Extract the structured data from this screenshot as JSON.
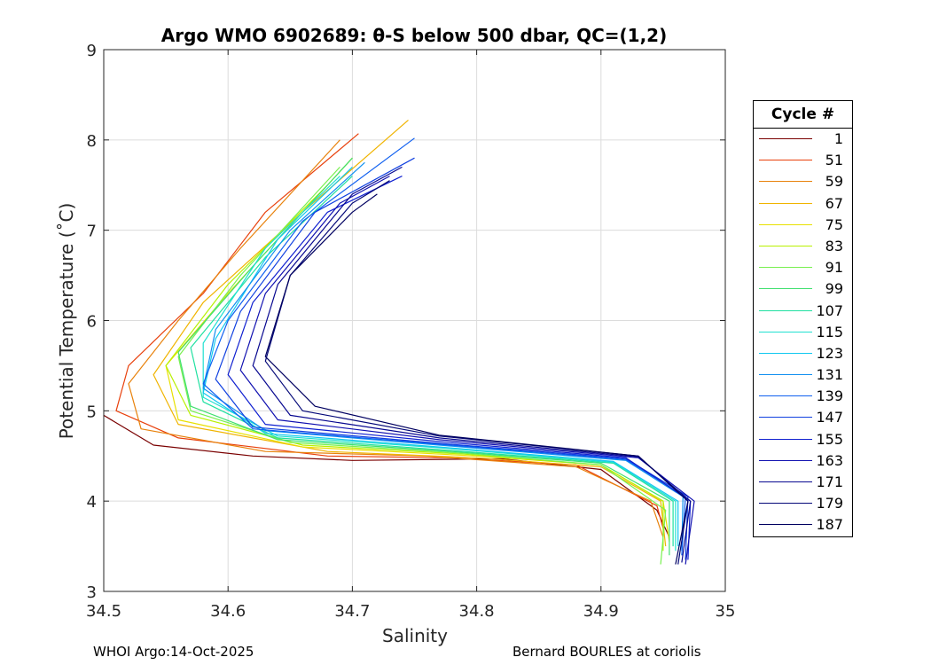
{
  "chart_data": {
    "type": "line",
    "title": "Argo WMO 6902689: θ-S below 500 dbar,  QC=(1,2)",
    "xlabel": "Salinity",
    "ylabel": "Potential Temperature (˚C)",
    "xlim": [
      34.5,
      35
    ],
    "ylim": [
      3,
      9
    ],
    "xticks": [
      "34.5",
      "34.6",
      "34.7",
      "34.8",
      "34.9",
      "35"
    ],
    "yticks": [
      "3",
      "4",
      "5",
      "6",
      "7",
      "8",
      "9"
    ],
    "grid": true,
    "legend": {
      "title": "Cycle #",
      "placement": "outside-right",
      "entries": [
        {
          "label": "1",
          "color": "#7a0000"
        },
        {
          "label": "51",
          "color": "#e8400c"
        },
        {
          "label": "59",
          "color": "#e8820c"
        },
        {
          "label": "67",
          "color": "#f0b400"
        },
        {
          "label": "75",
          "color": "#e8e000"
        },
        {
          "label": "83",
          "color": "#b8f000"
        },
        {
          "label": "91",
          "color": "#78f050"
        },
        {
          "label": "99",
          "color": "#40e070"
        },
        {
          "label": "107",
          "color": "#20e0a0"
        },
        {
          "label": "115",
          "color": "#20e0d0"
        },
        {
          "label": "123",
          "color": "#10c8f0"
        },
        {
          "label": "131",
          "color": "#1090f0"
        },
        {
          "label": "139",
          "color": "#1060f0"
        },
        {
          "label": "147",
          "color": "#1040e0"
        },
        {
          "label": "155",
          "color": "#1020d0"
        },
        {
          "label": "163",
          "color": "#1010b0"
        },
        {
          "label": "171",
          "color": "#080890"
        },
        {
          "label": "179",
          "color": "#040878"
        },
        {
          "label": "187",
          "color": "#000060"
        }
      ]
    },
    "series": [
      {
        "name": "1",
        "color": "#7a0000",
        "points": [
          [
            34.955,
            3.6
          ],
          [
            34.945,
            3.9
          ],
          [
            34.9,
            4.35
          ],
          [
            34.82,
            4.47
          ],
          [
            34.7,
            4.45
          ],
          [
            34.62,
            4.5
          ],
          [
            34.54,
            4.62
          ],
          [
            34.5,
            4.95
          ]
        ]
      },
      {
        "name": "51",
        "color": "#e8400c",
        "points": [
          [
            34.95,
            3.7
          ],
          [
            34.945,
            3.95
          ],
          [
            34.88,
            4.4
          ],
          [
            34.78,
            4.48
          ],
          [
            34.68,
            4.5
          ],
          [
            34.56,
            4.7
          ],
          [
            34.51,
            5.0
          ],
          [
            34.52,
            5.5
          ],
          [
            34.58,
            6.3
          ],
          [
            34.63,
            7.2
          ],
          [
            34.705,
            8.07
          ]
        ]
      },
      {
        "name": "59",
        "color": "#e8820c",
        "points": [
          [
            34.95,
            3.6
          ],
          [
            34.94,
            4.0
          ],
          [
            34.88,
            4.38
          ],
          [
            34.76,
            4.5
          ],
          [
            34.63,
            4.55
          ],
          [
            34.53,
            4.8
          ],
          [
            34.52,
            5.3
          ],
          [
            34.56,
            6.0
          ],
          [
            34.61,
            6.8
          ],
          [
            34.69,
            8.0
          ]
        ]
      },
      {
        "name": "67",
        "color": "#f0b400",
        "points": [
          [
            34.952,
            3.5
          ],
          [
            34.948,
            4.0
          ],
          [
            34.9,
            4.38
          ],
          [
            34.8,
            4.48
          ],
          [
            34.68,
            4.55
          ],
          [
            34.56,
            4.85
          ],
          [
            34.54,
            5.4
          ],
          [
            34.58,
            6.2
          ],
          [
            34.66,
            7.2
          ],
          [
            34.745,
            8.22
          ]
        ]
      },
      {
        "name": "75",
        "color": "#e8e000",
        "points": [
          [
            34.955,
            3.55
          ],
          [
            34.95,
            4.0
          ],
          [
            34.9,
            4.4
          ],
          [
            34.8,
            4.5
          ],
          [
            34.66,
            4.6
          ],
          [
            34.56,
            4.9
          ],
          [
            34.55,
            5.5
          ],
          [
            34.6,
            6.3
          ],
          [
            34.7,
            7.8
          ]
        ]
      },
      {
        "name": "83",
        "color": "#b8f000",
        "points": [
          [
            34.95,
            3.45
          ],
          [
            34.95,
            4.0
          ],
          [
            34.9,
            4.4
          ],
          [
            34.79,
            4.52
          ],
          [
            34.66,
            4.62
          ],
          [
            34.57,
            4.95
          ],
          [
            34.55,
            5.5
          ],
          [
            34.6,
            6.4
          ],
          [
            34.68,
            7.5
          ]
        ]
      },
      {
        "name": "91",
        "color": "#78f050",
        "points": [
          [
            34.948,
            3.3
          ],
          [
            34.952,
            3.9
          ],
          [
            34.9,
            4.4
          ],
          [
            34.79,
            4.53
          ],
          [
            34.65,
            4.65
          ],
          [
            34.57,
            5.0
          ],
          [
            34.56,
            5.6
          ],
          [
            34.61,
            6.5
          ],
          [
            34.69,
            7.7
          ]
        ]
      },
      {
        "name": "99",
        "color": "#40e070",
        "points": [
          [
            34.955,
            3.4
          ],
          [
            34.955,
            4.0
          ],
          [
            34.9,
            4.42
          ],
          [
            34.78,
            4.55
          ],
          [
            34.64,
            4.68
          ],
          [
            34.57,
            5.05
          ],
          [
            34.56,
            5.65
          ],
          [
            34.62,
            6.6
          ],
          [
            34.7,
            7.8
          ]
        ]
      },
      {
        "name": "107",
        "color": "#20e0a0",
        "points": [
          [
            34.958,
            3.5
          ],
          [
            34.958,
            4.0
          ],
          [
            34.91,
            4.42
          ],
          [
            34.78,
            4.56
          ],
          [
            34.64,
            4.7
          ],
          [
            34.58,
            5.1
          ],
          [
            34.57,
            5.7
          ],
          [
            34.63,
            6.7
          ],
          [
            34.7,
            7.6
          ]
        ]
      },
      {
        "name": "115",
        "color": "#20e0d0",
        "points": [
          [
            34.96,
            3.45
          ],
          [
            34.96,
            4.0
          ],
          [
            34.91,
            4.43
          ],
          [
            34.78,
            4.58
          ],
          [
            34.64,
            4.72
          ],
          [
            34.58,
            5.15
          ],
          [
            34.58,
            5.75
          ],
          [
            34.63,
            6.8
          ],
          [
            34.69,
            7.6
          ]
        ]
      },
      {
        "name": "123",
        "color": "#10c8f0",
        "points": [
          [
            34.962,
            3.5
          ],
          [
            34.962,
            4.0
          ],
          [
            34.91,
            4.44
          ],
          [
            34.77,
            4.6
          ],
          [
            34.63,
            4.75
          ],
          [
            34.58,
            5.2
          ],
          [
            34.59,
            5.8
          ],
          [
            34.64,
            6.9
          ],
          [
            34.7,
            7.7
          ]
        ]
      },
      {
        "name": "131",
        "color": "#1090f0",
        "points": [
          [
            34.965,
            3.45
          ],
          [
            34.966,
            4.05
          ],
          [
            34.92,
            4.45
          ],
          [
            34.77,
            4.62
          ],
          [
            34.63,
            4.78
          ],
          [
            34.58,
            5.25
          ],
          [
            34.59,
            5.9
          ],
          [
            34.65,
            7.0
          ],
          [
            34.71,
            7.75
          ]
        ]
      },
      {
        "name": "139",
        "color": "#1060f0",
        "points": [
          [
            34.965,
            3.4
          ],
          [
            34.968,
            4.05
          ],
          [
            34.92,
            4.46
          ],
          [
            34.77,
            4.63
          ],
          [
            34.62,
            4.8
          ],
          [
            34.58,
            5.3
          ],
          [
            34.6,
            6.0
          ],
          [
            34.66,
            7.1
          ],
          [
            34.75,
            8.02
          ]
        ]
      },
      {
        "name": "147",
        "color": "#1040e0",
        "points": [
          [
            34.968,
            3.35
          ],
          [
            34.97,
            4.05
          ],
          [
            34.92,
            4.47
          ],
          [
            34.77,
            4.64
          ],
          [
            34.62,
            4.82
          ],
          [
            34.59,
            5.35
          ],
          [
            34.61,
            6.1
          ],
          [
            34.67,
            7.2
          ],
          [
            34.75,
            7.8
          ]
        ]
      },
      {
        "name": "155",
        "color": "#1020d0",
        "points": [
          [
            34.97,
            3.35
          ],
          [
            34.972,
            4.0
          ],
          [
            34.92,
            4.48
          ],
          [
            34.77,
            4.66
          ],
          [
            34.63,
            4.85
          ],
          [
            34.6,
            5.4
          ],
          [
            34.62,
            6.2
          ],
          [
            34.68,
            7.2
          ],
          [
            34.74,
            7.6
          ]
        ]
      },
      {
        "name": "163",
        "color": "#1010b0",
        "points": [
          [
            34.968,
            3.3
          ],
          [
            34.975,
            4.0
          ],
          [
            34.93,
            4.48
          ],
          [
            34.77,
            4.68
          ],
          [
            34.64,
            4.9
          ],
          [
            34.61,
            5.45
          ],
          [
            34.63,
            6.3
          ],
          [
            34.69,
            7.3
          ],
          [
            34.73,
            7.6
          ]
        ]
      },
      {
        "name": "171",
        "color": "#080890",
        "points": [
          [
            34.965,
            3.32
          ],
          [
            34.972,
            4.0
          ],
          [
            34.93,
            4.49
          ],
          [
            34.77,
            4.7
          ],
          [
            34.65,
            4.95
          ],
          [
            34.62,
            5.5
          ],
          [
            34.64,
            6.4
          ],
          [
            34.7,
            7.4
          ],
          [
            34.74,
            7.7
          ]
        ]
      },
      {
        "name": "179",
        "color": "#040878",
        "points": [
          [
            34.962,
            3.3
          ],
          [
            34.97,
            4.0
          ],
          [
            34.93,
            4.5
          ],
          [
            34.77,
            4.72
          ],
          [
            34.66,
            5.0
          ],
          [
            34.63,
            5.55
          ],
          [
            34.65,
            6.5
          ],
          [
            34.7,
            7.3
          ],
          [
            34.73,
            7.55
          ]
        ]
      },
      {
        "name": "187",
        "color": "#000060",
        "points": [
          [
            34.96,
            3.3
          ],
          [
            34.97,
            4.0
          ],
          [
            34.93,
            4.5
          ],
          [
            34.77,
            4.73
          ],
          [
            34.67,
            5.05
          ],
          [
            34.63,
            5.6
          ],
          [
            34.65,
            6.5
          ],
          [
            34.7,
            7.2
          ],
          [
            34.72,
            7.4
          ]
        ]
      }
    ]
  },
  "footer": {
    "left": "WHOI Argo:14-Oct-2025",
    "right": "Bernard BOURLES at coriolis"
  }
}
